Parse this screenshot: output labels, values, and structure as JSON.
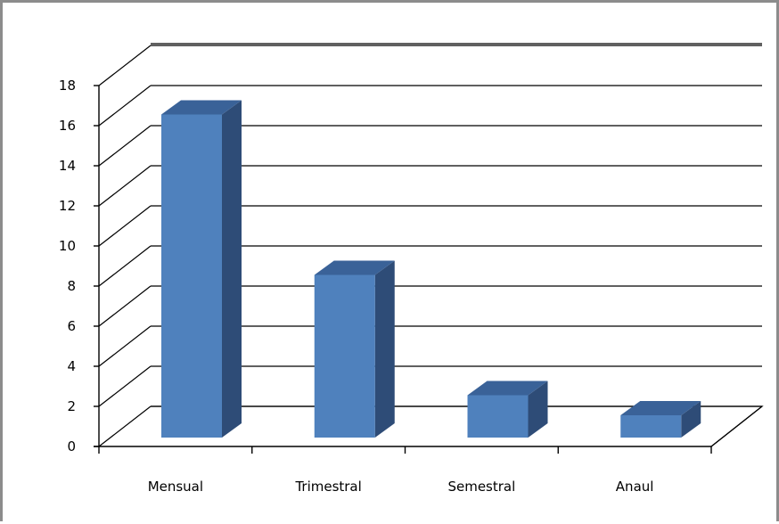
{
  "chart_data": {
    "type": "bar",
    "categories": [
      "Mensual",
      "Trimestral",
      "Semestral",
      "Anaul"
    ],
    "values": [
      17,
      9,
      3,
      2
    ],
    "ylim": [
      0,
      18
    ],
    "yticks": [
      "0",
      "2",
      "4",
      "6",
      "8",
      "10",
      "12",
      "14",
      "16",
      "18"
    ],
    "grid": true,
    "legend": "none",
    "style": "3d-column",
    "colors": {
      "bar_front": "#4f81bd",
      "bar_side": "#2e4c77",
      "bar_top": "#3a6298",
      "grid": "#000000",
      "frame": "#8c8c8c"
    }
  }
}
